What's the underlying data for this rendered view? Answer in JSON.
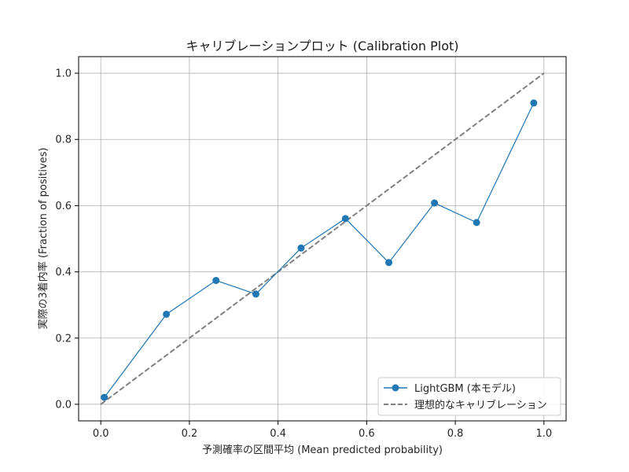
{
  "chart_data": {
    "type": "line",
    "title": "キャリブレーションプロット (Calibration Plot)",
    "xlabel": "予測確率の区間平均 (Mean predicted probability)",
    "ylabel": "実際の3着内率 (Fraction of positives)",
    "xlim": [
      -0.05,
      1.05
    ],
    "ylim": [
      -0.05,
      1.05
    ],
    "xticks": [
      0.0,
      0.2,
      0.4,
      0.6,
      0.8,
      1.0
    ],
    "yticks": [
      0.0,
      0.2,
      0.4,
      0.6,
      0.8,
      1.0
    ],
    "xtick_labels": [
      "0.0",
      "0.2",
      "0.4",
      "0.6",
      "0.8",
      "1.0"
    ],
    "ytick_labels": [
      "0.0",
      "0.2",
      "0.4",
      "0.6",
      "0.8",
      "1.0"
    ],
    "grid": true,
    "legend_position": "bottom-right",
    "series": [
      {
        "name": "LightGBM (本モデル)",
        "style": "solid-line-circle-markers",
        "color": "#1f77b4",
        "x": [
          0.008,
          0.148,
          0.26,
          0.35,
          0.452,
          0.552,
          0.65,
          0.753,
          0.848,
          0.977
        ],
        "y": [
          0.021,
          0.272,
          0.374,
          0.333,
          0.472,
          0.561,
          0.428,
          0.608,
          0.549,
          0.91
        ]
      },
      {
        "name": "理想的なキャリブレーション",
        "style": "dashed-line",
        "color": "#808080",
        "x": [
          0.0,
          1.0
        ],
        "y": [
          0.0,
          1.0
        ]
      }
    ]
  }
}
